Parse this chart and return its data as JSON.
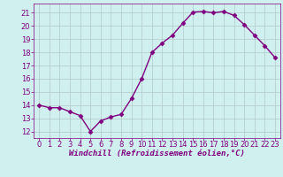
{
  "x": [
    0,
    1,
    2,
    3,
    4,
    5,
    6,
    7,
    8,
    9,
    10,
    11,
    12,
    13,
    14,
    15,
    16,
    17,
    18,
    19,
    20,
    21,
    22,
    23
  ],
  "y": [
    14.0,
    13.8,
    13.8,
    13.5,
    13.2,
    12.0,
    12.8,
    13.1,
    13.3,
    14.5,
    16.0,
    18.0,
    18.7,
    19.3,
    20.2,
    21.05,
    21.1,
    21.0,
    21.1,
    20.8,
    20.1,
    19.3,
    18.5,
    17.6
  ],
  "line_color": "#800080",
  "marker": "D",
  "marker_size": 2.5,
  "line_width": 1.0,
  "bg_color": "#cff0ee",
  "grid_color": "#b0c8c8",
  "xlabel": "Windchill (Refroidissement éolien,°C)",
  "xlabel_color": "#800080",
  "xlabel_fontsize": 6.5,
  "tick_color": "#800080",
  "tick_fontsize": 6.0,
  "ylim": [
    11.5,
    21.7
  ],
  "xlim": [
    -0.5,
    23.5
  ],
  "yticks": [
    12,
    13,
    14,
    15,
    16,
    17,
    18,
    19,
    20,
    21
  ],
  "xticks": [
    0,
    1,
    2,
    3,
    4,
    5,
    6,
    7,
    8,
    9,
    10,
    11,
    12,
    13,
    14,
    15,
    16,
    17,
    18,
    19,
    20,
    21,
    22,
    23
  ]
}
